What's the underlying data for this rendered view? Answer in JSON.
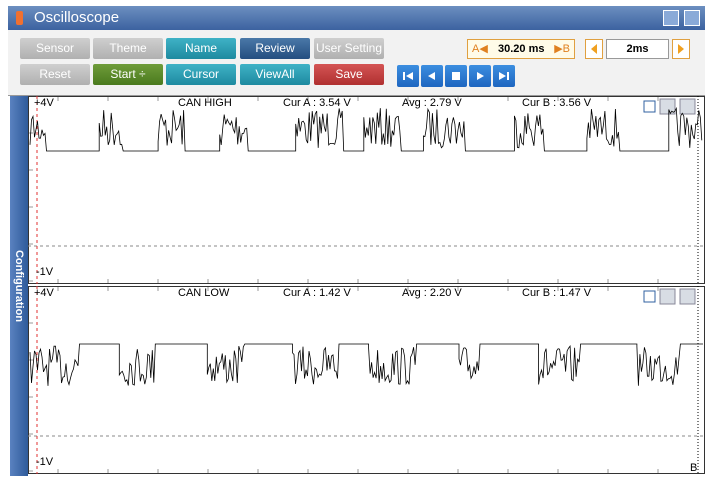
{
  "window": {
    "title": "Oscilloscope"
  },
  "side_tab": "Configuration",
  "toolbar": {
    "row1": [
      "Sensor",
      "Theme",
      "Name",
      "Review",
      "User Setting"
    ],
    "row2": [
      "Reset",
      "Start ÷",
      "Cursor",
      "ViewAll",
      "Save"
    ],
    "cursor_a": "A◀",
    "time_value": "30.20 ms",
    "cursor_b": "▶B",
    "time_div": "2ms"
  },
  "channels": [
    {
      "top_label": "+4V",
      "name": "CAN HIGH",
      "cur_a": "Cur A : 3.54 V",
      "avg": "Avg : 2.79 V",
      "cur_b": "Cur B : 3.56 V",
      "bottom_label": "-1V"
    },
    {
      "top_label": "+4V",
      "name": "CAN LOW",
      "cur_a": "Cur A : 1.42 V",
      "avg": "Avg : 2.20 V",
      "cur_b": "Cur B : 1.47 V",
      "bottom_label": "-1V"
    }
  ],
  "cursor_b_label": "B"
}
